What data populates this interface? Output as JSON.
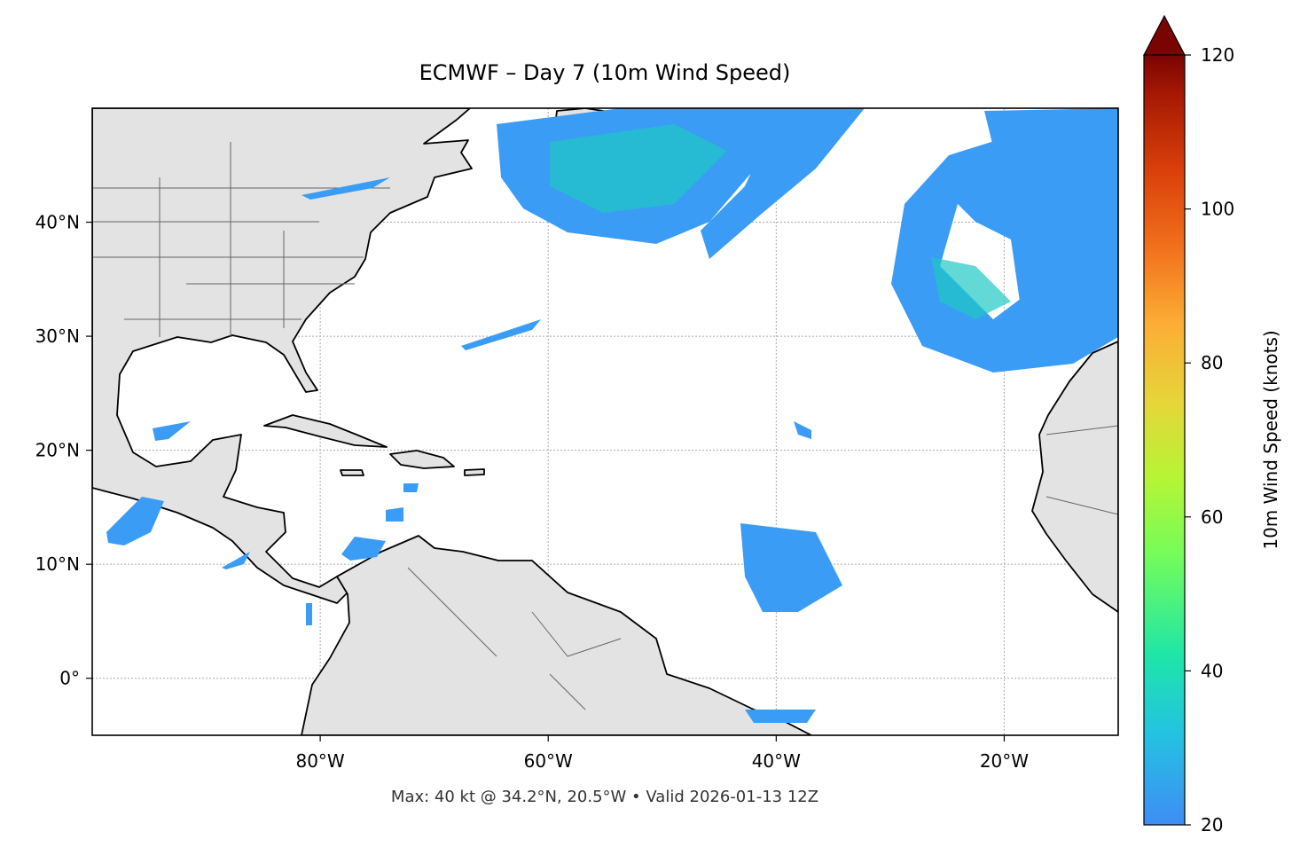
{
  "chart_data": {
    "type": "map",
    "title": "ECMWF – Day 7 (10m Wind Speed)",
    "annotation": "Max: 40 kt @ 34.2°N, 20.5°W • Valid 2026-01-13 12Z",
    "xlim": [
      -100,
      -10
    ],
    "ylim": [
      -5,
      50
    ],
    "xticks": [
      {
        "value": -80,
        "label": "80°W"
      },
      {
        "value": -60,
        "label": "60°W"
      },
      {
        "value": -40,
        "label": "40°W"
      },
      {
        "value": -20,
        "label": "20°W"
      }
    ],
    "yticks": [
      {
        "value": 0,
        "label": "0°"
      },
      {
        "value": 10,
        "label": "10°N"
      },
      {
        "value": 20,
        "label": "20°N"
      },
      {
        "value": 30,
        "label": "30°N"
      },
      {
        "value": 40,
        "label": "40°N"
      }
    ],
    "grid": true,
    "colorbar": {
      "label": "10m Wind Speed (knots)",
      "lim": [
        20,
        120
      ],
      "ticks": [
        20,
        40,
        60,
        80,
        100,
        120
      ]
    }
  }
}
